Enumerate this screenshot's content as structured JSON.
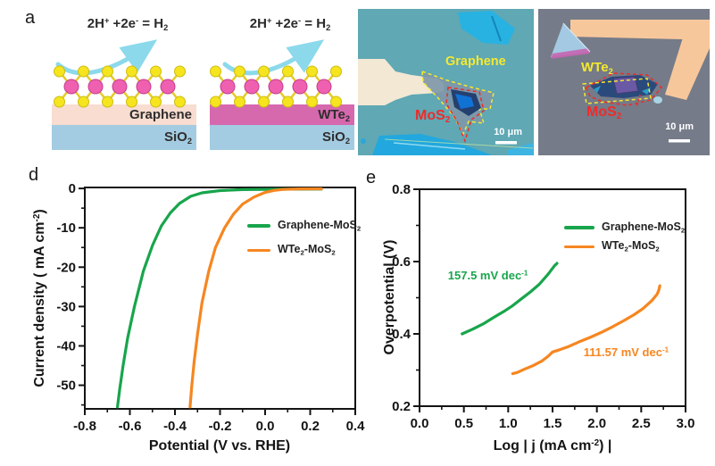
{
  "colors": {
    "green": "#18a54c",
    "orange": "#f68620",
    "axis_dark": "#141414",
    "label_yellow": "#f5e92e",
    "label_red": "#ee2b2b",
    "scalebar_white": "#ffffff",
    "panel_b_bg": "#5fa8b4",
    "panel_c_bg": "#757b88",
    "electrode_b": "#f2e8d4",
    "electrode_c": "#f7c79c",
    "flake_cyan": "#28b2e2",
    "flake_bottom_cyan": "#22a8de",
    "graphene_flake": "#7e97a9",
    "mos2_flake_b": "#24406f",
    "mos2_core_blue": "#1172d6",
    "triangle_flake": "#a4c9e2",
    "triangle_strip": "#c665b2",
    "mos2_flake_c": "#2b4a7c",
    "wte2_core": "#6a59a4",
    "blob_c": "#a9d3e2",
    "graphene_layer": "#f8ddd0",
    "wte2_layer": "#d668ae",
    "sio2_layer": "#a3cbe1",
    "arrow_cyan": "#8cd9ec",
    "atom_pink": "#f060b0",
    "atom_pink_edge": "#c23d90",
    "atom_yellow": "#f6e41f",
    "atom_yellow_edge": "#cdbd0f",
    "bond_yellow": "#e5cb28"
  },
  "panel_a": {
    "letter": "a",
    "reaction_left": [
      {
        "t": "2H"
      },
      {
        "sup": "+"
      },
      {
        "t": " +2e"
      },
      {
        "sup": "-"
      },
      {
        "t": " = H"
      },
      {
        "sub": "2"
      }
    ],
    "reaction_right": [
      {
        "t": "2H"
      },
      {
        "sup": "+"
      },
      {
        "t": " +2e"
      },
      {
        "sup": "-"
      },
      {
        "t": " = H"
      },
      {
        "sub": "2"
      }
    ],
    "left_layer": [
      {
        "t": "Graphene"
      }
    ],
    "right_layer": [
      {
        "t": "WTe"
      },
      {
        "sub": "2"
      }
    ],
    "substrate_left": [
      {
        "t": "SiO"
      },
      {
        "sub": "2"
      }
    ],
    "substrate_right": [
      {
        "t": "SiO"
      },
      {
        "sub": "2"
      }
    ]
  },
  "panel_b": {
    "letter": "b",
    "label_graphene": [
      {
        "t": "Graphene"
      }
    ],
    "label_mos2": [
      {
        "t": "MoS"
      },
      {
        "sub": "2"
      }
    ],
    "scale_bar_text": "10 μm"
  },
  "panel_c": {
    "letter": "c",
    "label_wte2": [
      {
        "t": "WTe"
      },
      {
        "sub": "2"
      }
    ],
    "label_mos2": [
      {
        "t": "MoS"
      },
      {
        "sub": "2"
      }
    ],
    "scale_bar_text": "10 μm"
  },
  "panel_d": {
    "letter": "d",
    "xlabel": [
      {
        "t": "Potential (V vs. RHE)"
      }
    ],
    "ylabel": [
      {
        "t": "Current density ( mA cm"
      },
      {
        "sup": "-2"
      },
      {
        "t": ")"
      }
    ],
    "legend": [
      {
        "color": "green",
        "segments": [
          {
            "t": "Graphene-MoS"
          },
          {
            "sub": "2"
          }
        ]
      },
      {
        "color": "orange",
        "segments": [
          {
            "t": "WTe"
          },
          {
            "sub": "2"
          },
          {
            "t": "-MoS"
          },
          {
            "sub": "2"
          }
        ]
      }
    ]
  },
  "panel_e": {
    "letter": "e",
    "xlabel": [
      {
        "t": "Log | j (mA cm"
      },
      {
        "sup": "-2"
      },
      {
        "t": ") |"
      }
    ],
    "ylabel": [
      {
        "t": "Overpotential (V)"
      }
    ],
    "legend": [
      {
        "color": "green",
        "segments": [
          {
            "t": "Graphene-MoS"
          },
          {
            "sub": "2"
          }
        ]
      },
      {
        "color": "orange",
        "segments": [
          {
            "t": "WTe"
          },
          {
            "sub": "2"
          },
          {
            "t": "-MoS"
          },
          {
            "sub": "2"
          }
        ]
      }
    ]
  },
  "chart_data": [
    {
      "panel": "d",
      "type": "line",
      "title": "",
      "xlabel": "Potential (V vs. RHE)",
      "ylabel": "Current density ( mA cm^-2 )",
      "xlim": [
        -0.8,
        0.4
      ],
      "ylim": [
        -56,
        0.25
      ],
      "xticks": [
        -0.8,
        -0.6,
        -0.4,
        -0.2,
        0.0,
        0.2,
        0.4
      ],
      "xtick_labels": [
        "-0.8",
        "-0.6",
        "-0.4",
        "-0.2",
        "0.0",
        "0.2",
        "0.4"
      ],
      "yticks": [
        0,
        -10,
        -20,
        -30,
        -40,
        -50
      ],
      "ytick_labels": [
        "0",
        "-10",
        "-20",
        "-30",
        "-40",
        "-50"
      ],
      "x_minor_step": 0.1,
      "y_minor_step": 5,
      "grid": false,
      "legend_position": "center-right",
      "series": [
        {
          "name": "Graphene-MoS2",
          "color": "green",
          "points": [
            [
              0.25,
              -0.15
            ],
            [
              0.1,
              -0.18
            ],
            [
              0.0,
              -0.22
            ],
            [
              -0.1,
              -0.3
            ],
            [
              -0.2,
              -0.55
            ],
            [
              -0.28,
              -1.1
            ],
            [
              -0.33,
              -2.0
            ],
            [
              -0.38,
              -3.8
            ],
            [
              -0.42,
              -6.2
            ],
            [
              -0.46,
              -9.5
            ],
            [
              -0.5,
              -14.5
            ],
            [
              -0.54,
              -21
            ],
            [
              -0.58,
              -30
            ],
            [
              -0.61,
              -38
            ],
            [
              -0.63,
              -45
            ],
            [
              -0.645,
              -51
            ],
            [
              -0.655,
              -55.5
            ]
          ]
        },
        {
          "name": "WTe2-MoS2",
          "color": "orange",
          "points": [
            [
              0.25,
              -0.08
            ],
            [
              0.15,
              -0.12
            ],
            [
              0.08,
              -0.25
            ],
            [
              0.04,
              -0.5
            ],
            [
              0.0,
              -1.0
            ],
            [
              -0.05,
              -2.2
            ],
            [
              -0.1,
              -4.0
            ],
            [
              -0.14,
              -6.5
            ],
            [
              -0.18,
              -10
            ],
            [
              -0.22,
              -15
            ],
            [
              -0.25,
              -21
            ],
            [
              -0.28,
              -29
            ],
            [
              -0.3,
              -37
            ],
            [
              -0.315,
              -44
            ],
            [
              -0.325,
              -50
            ],
            [
              -0.333,
              -55.5
            ]
          ]
        }
      ]
    },
    {
      "panel": "e",
      "type": "line",
      "title": "",
      "xlabel": "Log | j (mA cm^-2) |",
      "ylabel": "Overpotential (V)",
      "xlim": [
        0.0,
        3.0
      ],
      "ylim": [
        0.2,
        0.8
      ],
      "xticks": [
        0.0,
        0.5,
        1.0,
        1.5,
        2.0,
        2.5,
        3.0
      ],
      "xtick_labels": [
        "0.0",
        "0.5",
        "1.0",
        "1.5",
        "2.0",
        "2.5",
        "3.0"
      ],
      "yticks": [
        0.2,
        0.4,
        0.6,
        0.8
      ],
      "ytick_labels": [
        "0.2",
        "0.4",
        "0.6",
        "0.8"
      ],
      "x_minor_step": 0.25,
      "y_minor_step": 0.1,
      "grid": false,
      "legend_position": "top-right",
      "series": [
        {
          "name": "Graphene-MoS2",
          "color": "green",
          "tafel_slope": "157.5 mV dec^-1",
          "points": [
            [
              0.48,
              0.4
            ],
            [
              0.6,
              0.413
            ],
            [
              0.72,
              0.428
            ],
            [
              0.84,
              0.446
            ],
            [
              0.95,
              0.462
            ],
            [
              1.05,
              0.478
            ],
            [
              1.15,
              0.497
            ],
            [
              1.25,
              0.516
            ],
            [
              1.35,
              0.537
            ],
            [
              1.45,
              0.565
            ],
            [
              1.52,
              0.588
            ],
            [
              1.55,
              0.595
            ]
          ]
        },
        {
          "name": "WTe2-MoS2",
          "color": "orange",
          "tafel_slope": "111.57 mV dec^-1",
          "points": [
            [
              1.05,
              0.29
            ],
            [
              1.1,
              0.293
            ],
            [
              1.18,
              0.302
            ],
            [
              1.28,
              0.312
            ],
            [
              1.38,
              0.325
            ],
            [
              1.45,
              0.338
            ],
            [
              1.5,
              0.35
            ],
            [
              1.58,
              0.356
            ],
            [
              1.68,
              0.365
            ],
            [
              1.8,
              0.378
            ],
            [
              1.92,
              0.39
            ],
            [
              2.05,
              0.404
            ],
            [
              2.18,
              0.42
            ],
            [
              2.3,
              0.436
            ],
            [
              2.42,
              0.453
            ],
            [
              2.52,
              0.47
            ],
            [
              2.62,
              0.492
            ],
            [
              2.68,
              0.51
            ],
            [
              2.7,
              0.522
            ],
            [
              2.71,
              0.533
            ]
          ]
        }
      ],
      "annotations": [
        {
          "x": 0.32,
          "y": 0.578,
          "color": "green",
          "segments": [
            {
              "t": "157.5 mV dec"
            },
            {
              "sup": "-1"
            }
          ]
        },
        {
          "x": 1.85,
          "y": 0.366,
          "color": "orange",
          "segments": [
            {
              "t": "111.57 mV dec"
            },
            {
              "sup": "-1"
            }
          ]
        }
      ]
    }
  ]
}
